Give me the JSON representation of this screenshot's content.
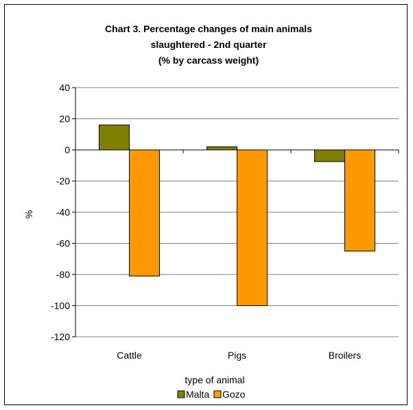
{
  "chart_data": {
    "type": "bar",
    "title_lines": [
      "Chart 3.  Percentage changes of main animals",
      "slaughtered - 2nd quarter",
      "(% by carcass weight)"
    ],
    "xlabel": "type of animal",
    "ylabel": "%",
    "categories": [
      "Cattle",
      "Pigs",
      "Broilers"
    ],
    "series": [
      {
        "name": "Malta",
        "color": "#808000",
        "values": [
          16,
          2,
          -7.5
        ]
      },
      {
        "name": "Gozo",
        "color": "#FF9900",
        "values": [
          -81,
          -100,
          -65
        ]
      }
    ],
    "ylim": [
      -120,
      40
    ],
    "yticks": [
      40,
      20,
      0,
      -20,
      -40,
      -60,
      -80,
      -100,
      -120
    ],
    "grid": true,
    "legend_position": "bottom"
  }
}
